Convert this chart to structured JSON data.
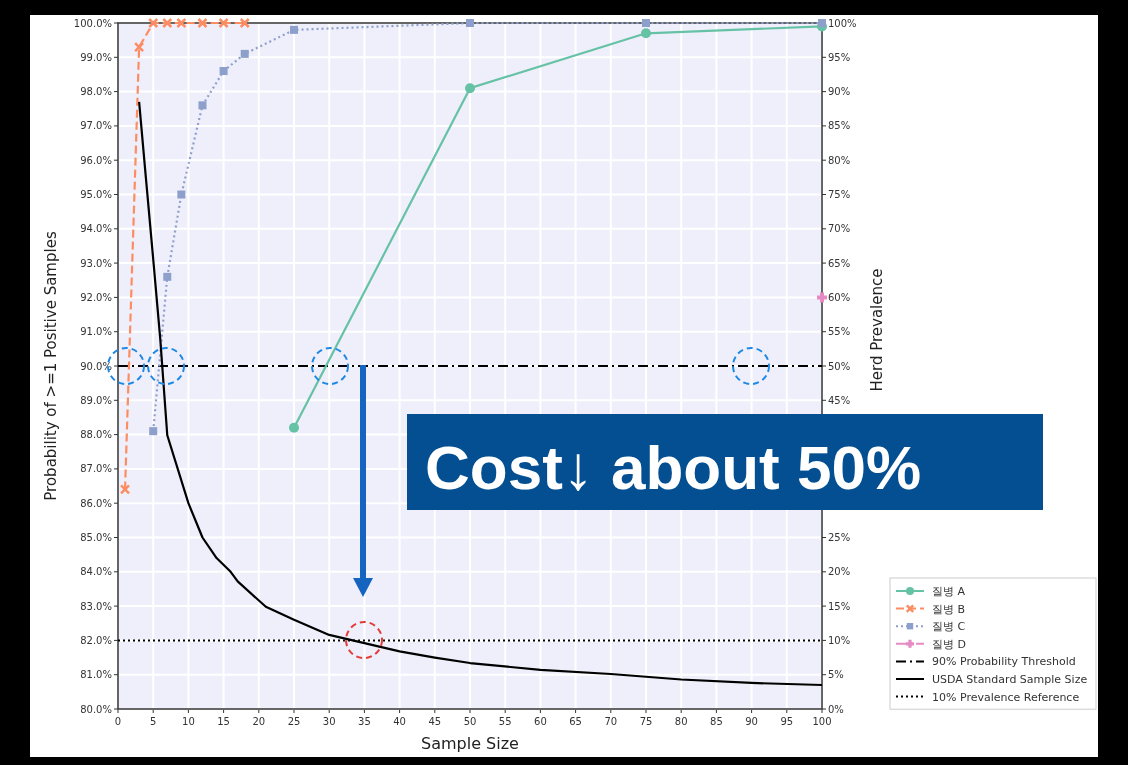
{
  "chart_data": {
    "type": "line",
    "xlabel": "Sample Size",
    "ylabel": "Probability of >=1 Positive Samples",
    "y2label": "Herd Prevalence",
    "xlim": [
      0,
      100
    ],
    "xticks": [
      0,
      5,
      10,
      15,
      20,
      25,
      30,
      35,
      40,
      45,
      50,
      55,
      60,
      65,
      70,
      75,
      80,
      85,
      90,
      95,
      100
    ],
    "ylim": [
      80,
      100
    ],
    "yticks": [
      {
        "value": 80,
        "label": "80.0%"
      },
      {
        "value": 81,
        "label": "81.0%"
      },
      {
        "value": 82,
        "label": "82.0%"
      },
      {
        "value": 83,
        "label": "83.0%"
      },
      {
        "value": 84,
        "label": "84.0%"
      },
      {
        "value": 85,
        "label": "85.0%"
      },
      {
        "value": 86,
        "label": "86.0%"
      },
      {
        "value": 87,
        "label": "87.0%"
      },
      {
        "value": 88,
        "label": "88.0%"
      },
      {
        "value": 89,
        "label": "89.0%"
      },
      {
        "value": 90,
        "label": "90.0%"
      },
      {
        "value": 91,
        "label": "91.0%"
      },
      {
        "value": 92,
        "label": "92.0%"
      },
      {
        "value": 93,
        "label": "93.0%"
      },
      {
        "value": 94,
        "label": "94.0%"
      },
      {
        "value": 95,
        "label": "95.0%"
      },
      {
        "value": 96,
        "label": "96.0%"
      },
      {
        "value": 97,
        "label": "97.0%"
      },
      {
        "value": 98,
        "label": "98.0%"
      },
      {
        "value": 99,
        "label": "99.0%"
      },
      {
        "value": 100,
        "label": "100.0%"
      }
    ],
    "y2lim": [
      0,
      100
    ],
    "y2ticks": [
      {
        "value": 0,
        "label": "0%"
      },
      {
        "value": 5,
        "label": "5%"
      },
      {
        "value": 10,
        "label": "10%"
      },
      {
        "value": 15,
        "label": "15%"
      },
      {
        "value": 20,
        "label": "20%"
      },
      {
        "value": 25,
        "label": "25%"
      },
      {
        "value": 45,
        "label": "45%"
      },
      {
        "value": 50,
        "label": "50%"
      },
      {
        "value": 55,
        "label": "55%"
      },
      {
        "value": 60,
        "label": "60%"
      },
      {
        "value": 65,
        "label": "65%"
      },
      {
        "value": 70,
        "label": "70%"
      },
      {
        "value": 75,
        "label": "75%"
      },
      {
        "value": 80,
        "label": "80%"
      },
      {
        "value": 85,
        "label": "85%"
      },
      {
        "value": 90,
        "label": "90%"
      },
      {
        "value": 95,
        "label": "95%"
      },
      {
        "value": 100,
        "label": "100%"
      }
    ],
    "grid": true,
    "legend": "bottom right",
    "series": [
      {
        "name": "질병 A",
        "color": "#66c2a5",
        "marker": "circle",
        "line_style": "solid",
        "x": [
          25,
          50,
          75,
          100
        ],
        "values": [
          88.2,
          98.1,
          99.7,
          99.9
        ]
      },
      {
        "name": "질병 B",
        "color": "#fc8d62",
        "marker": "cross",
        "line_style": "dashed",
        "x": [
          1,
          3,
          5,
          7,
          9,
          12,
          15,
          18
        ],
        "values": [
          86.4,
          99.3,
          100,
          100,
          100,
          100,
          100,
          100
        ]
      },
      {
        "name": "질병 C",
        "color": "#8da0cb",
        "marker": "square",
        "line_style": "dotted",
        "x": [
          5,
          7,
          9,
          12,
          15,
          18,
          25,
          50,
          75,
          100
        ],
        "values": [
          88.1,
          92.6,
          95.0,
          97.6,
          98.6,
          99.1,
          99.8,
          100,
          100,
          100
        ]
      },
      {
        "name": "질병 D",
        "color": "#e78ac3",
        "marker": "plus",
        "line_style": "dashdot",
        "x": [
          100
        ],
        "values": [
          92.0
        ]
      },
      {
        "name": "USDA Standard Sample Size",
        "color": "#000000",
        "axis": "y2",
        "marker": "none",
        "line_style": "solid",
        "x": [
          3,
          4,
          5,
          6,
          7,
          10,
          12,
          14,
          16,
          17,
          21,
          25,
          30,
          35,
          40,
          45,
          50,
          60,
          70,
          80,
          90,
          100
        ],
        "values": [
          88.5,
          77,
          65.6,
          54,
          39.9,
          30,
          25,
          22,
          20,
          18.6,
          14.9,
          13,
          10.8,
          9.6,
          8.4,
          7.5,
          6.7,
          5.7,
          5.1,
          4.3,
          3.8,
          3.5
        ]
      }
    ],
    "ref_lines": [
      {
        "axis": "y",
        "value": 90,
        "label": "90% Probability Threshold",
        "color": "#000000",
        "line_style": "dashdot"
      },
      {
        "axis": "y2",
        "value": 10,
        "label": "10% Prevalence Reference",
        "color": "#000000",
        "line_style": "dotted"
      }
    ],
    "annotations": [
      "Cost↓ about 50%"
    ]
  }
}
